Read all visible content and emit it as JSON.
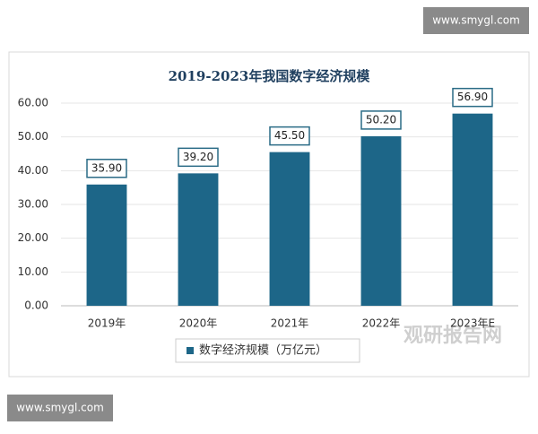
{
  "watermarks": [
    "www.smygl.com",
    "www.smygl.com",
    "观研报告网"
  ],
  "chart_data": {
    "type": "bar",
    "title": "2019-2023年我国数字经济规模",
    "categories": [
      "2019年",
      "2020年",
      "2021年",
      "2022年",
      "2023年E"
    ],
    "series": [
      {
        "name": "数字经济规模（万亿元）",
        "color": "#1d6688",
        "values": [
          35.9,
          39.2,
          45.5,
          50.2,
          56.9
        ],
        "value_labels": [
          "35.90",
          "39.20",
          "45.50",
          "50.20",
          "56.90"
        ]
      }
    ],
    "ylim": [
      0,
      60
    ],
    "yticks": [
      {
        "value": 0,
        "label": "0.00"
      },
      {
        "value": 10,
        "label": "10.00"
      },
      {
        "value": 20,
        "label": "20.00"
      },
      {
        "value": 30,
        "label": "30.00"
      },
      {
        "value": 40,
        "label": "40.00"
      },
      {
        "value": 50,
        "label": "50.00"
      },
      {
        "value": 60,
        "label": "60.00"
      }
    ],
    "grid": true
  }
}
